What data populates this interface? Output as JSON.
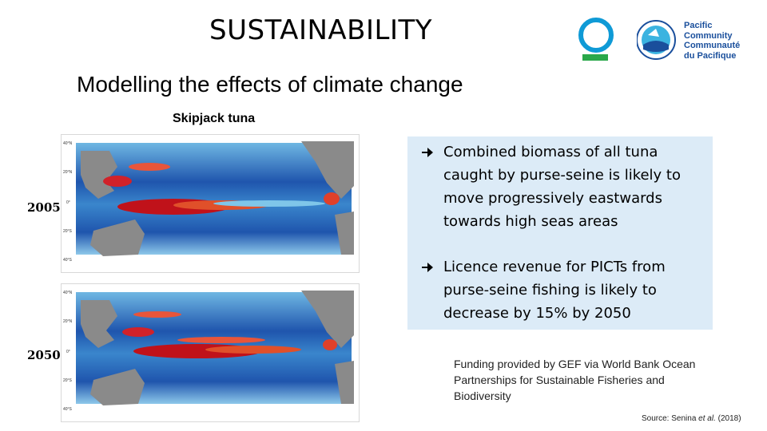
{
  "header": {
    "title": "SUSTAINABILITY",
    "subtitle": "Modelling the effects of climate change",
    "species_label": "Skipjack tuna"
  },
  "logos": {
    "pacific_community": [
      "Pacific",
      "Community",
      "Communauté",
      "du Pacifique"
    ]
  },
  "maps": {
    "lat_ticks": [
      "40°N",
      "20°N",
      "0°",
      "20°S",
      "40°S"
    ],
    "years": [
      "2005",
      "2050"
    ]
  },
  "panel": {
    "bullets": [
      "Combined biomass of all tuna caught by purse-seine is likely to move progressively eastwards towards high seas areas",
      "Licence revenue for PICTs from purse-seine fishing is likely to decrease by 15% by 2050"
    ]
  },
  "funding": "Funding provided by GEF via World Bank Ocean Partnerships for Sustainable Fisheries and Biodiversity",
  "source": {
    "prefix": "Source: Senina",
    "etal": "et al.",
    "year": "(2018)"
  },
  "colors": {
    "ocean_low": "#1c4fa8",
    "ocean_mid": "#4aa6d8",
    "hotspot": "#c0121a",
    "land": "#8a8a8a",
    "panel_bg": "#dcebf7",
    "logo_blue": "#0f9ad6",
    "logo_green": "#2aa84a"
  }
}
